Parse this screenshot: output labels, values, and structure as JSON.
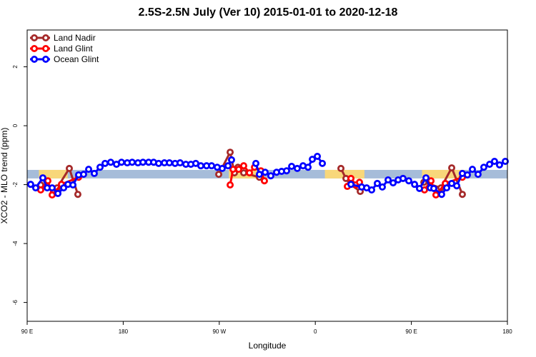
{
  "chart_data": {
    "type": "line",
    "title": "2.5S-2.5N July (Ver 10)   2015-01-01 to 2020-12-18",
    "xlabel": "Longitude",
    "ylabel": "XCO2 - MLO trend (ppm)",
    "xlim": [
      90,
      540
    ],
    "ylim": [
      -6.64,
      3.25
    ],
    "xticks": [
      {
        "v": 90,
        "label": "90 E"
      },
      {
        "v": 180,
        "label": "180"
      },
      {
        "v": 270,
        "label": "90 W"
      },
      {
        "v": 360,
        "label": "0"
      },
      {
        "v": 450,
        "label": "90 E"
      },
      {
        "v": 540,
        "label": "180"
      }
    ],
    "yticks": [
      {
        "v": 2,
        "label": "2"
      },
      {
        "v": 0,
        "label": "0"
      },
      {
        "v": -2,
        "label": "-2"
      },
      {
        "v": -4,
        "label": "-4"
      },
      {
        "v": -6,
        "label": "-6"
      }
    ],
    "legend_position": "top-left",
    "band": {
      "range": [
        -1.79,
        -1.5
      ],
      "color": "#a6bcd9"
    },
    "land_spans": {
      "color": "#f8d77a",
      "ranges": [
        [
          101,
          128
        ],
        [
          279,
          312
        ],
        [
          369,
          406
        ],
        [
          460,
          500
        ]
      ]
    },
    "series": [
      {
        "name": "Land Nadir",
        "color": "#a52a2a",
        "points": [
          [
            102.7,
            -2.01
          ],
          [
            118.1,
            -2.11
          ],
          [
            129.5,
            -1.45
          ],
          [
            137.5,
            -2.33
          ],
          [
            269.5,
            -1.65
          ],
          [
            280.2,
            -0.9
          ],
          [
            284.2,
            -1.6
          ],
          [
            287.5,
            -1.41
          ],
          [
            292.9,
            -1.6
          ],
          [
            307.6,
            -1.75
          ],
          [
            384,
            -1.45
          ],
          [
            388.7,
            -1.79
          ],
          [
            392.7,
            -1.99
          ],
          [
            402.1,
            -2.23
          ],
          [
            461.7,
            -1.92
          ],
          [
            477.7,
            -2.11
          ],
          [
            487.8,
            -1.43
          ],
          [
            497.8,
            -2.33
          ]
        ]
      },
      {
        "name": "Land Glint",
        "color": "#ff0000",
        "points": [
          [
            102.7,
            -2.18
          ],
          [
            109.4,
            -1.87
          ],
          [
            113.4,
            -2.35
          ],
          [
            122.1,
            -1.99
          ],
          [
            138.2,
            -1.75
          ],
          [
            280.2,
            -2.01
          ],
          [
            282.9,
            -1.48
          ],
          [
            288.2,
            -1.48
          ],
          [
            292.9,
            -1.36
          ],
          [
            298.3,
            -1.6
          ],
          [
            303,
            -1.41
          ],
          [
            309,
            -1.53
          ],
          [
            312.3,
            -1.87
          ],
          [
            390,
            -2.06
          ],
          [
            393.4,
            -1.79
          ],
          [
            398,
            -2.01
          ],
          [
            401.4,
            -1.92
          ],
          [
            462.3,
            -2.18
          ],
          [
            468.4,
            -1.87
          ],
          [
            473,
            -2.35
          ],
          [
            481.8,
            -1.96
          ],
          [
            497.8,
            -1.75
          ]
        ]
      },
      {
        "name": "Ocean Glint",
        "color": "#0000ff",
        "points": [
          [
            93.3,
            -1.99
          ],
          [
            98,
            -2.11
          ],
          [
            104.7,
            -1.77
          ],
          [
            108.8,
            -2.11
          ],
          [
            113.4,
            -2.11
          ],
          [
            118.8,
            -2.3
          ],
          [
            124.2,
            -2.11
          ],
          [
            128.2,
            -1.99
          ],
          [
            132.9,
            -2.01
          ],
          [
            138.2,
            -1.67
          ],
          [
            142.9,
            -1.65
          ],
          [
            147.6,
            -1.48
          ],
          [
            152.9,
            -1.62
          ],
          [
            158.3,
            -1.41
          ],
          [
            163,
            -1.28
          ],
          [
            168.3,
            -1.24
          ],
          [
            173.7,
            -1.31
          ],
          [
            178.4,
            -1.24
          ],
          [
            183.8,
            -1.26
          ],
          [
            188.4,
            -1.24
          ],
          [
            193.8,
            -1.26
          ],
          [
            198.5,
            -1.24
          ],
          [
            203.8,
            -1.24
          ],
          [
            208.5,
            -1.24
          ],
          [
            213.2,
            -1.28
          ],
          [
            218.6,
            -1.26
          ],
          [
            223.3,
            -1.26
          ],
          [
            228.6,
            -1.28
          ],
          [
            233.3,
            -1.26
          ],
          [
            238.7,
            -1.31
          ],
          [
            243.4,
            -1.31
          ],
          [
            248,
            -1.28
          ],
          [
            252.7,
            -1.36
          ],
          [
            258.1,
            -1.36
          ],
          [
            262.8,
            -1.36
          ],
          [
            268.1,
            -1.41
          ],
          [
            272.8,
            -1.45
          ],
          [
            278.2,
            -1.36
          ],
          [
            281.5,
            -1.16
          ],
          [
            304.3,
            -1.28
          ],
          [
            307.6,
            -1.65
          ],
          [
            313,
            -1.58
          ],
          [
            318.3,
            -1.7
          ],
          [
            323.7,
            -1.58
          ],
          [
            328.4,
            -1.55
          ],
          [
            333.1,
            -1.53
          ],
          [
            337.8,
            -1.38
          ],
          [
            343.1,
            -1.45
          ],
          [
            348.5,
            -1.36
          ],
          [
            353.2,
            -1.41
          ],
          [
            357.2,
            -1.14
          ],
          [
            361.9,
            -1.04
          ],
          [
            366.6,
            -1.28
          ],
          [
            393.4,
            -1.99
          ],
          [
            403.4,
            -2.08
          ],
          [
            408.1,
            -2.11
          ],
          [
            412.8,
            -2.18
          ],
          [
            418.1,
            -1.96
          ],
          [
            422.8,
            -2.08
          ],
          [
            428.2,
            -1.84
          ],
          [
            432.9,
            -1.94
          ],
          [
            437.6,
            -1.84
          ],
          [
            442.2,
            -1.79
          ],
          [
            447.6,
            -1.87
          ],
          [
            453,
            -1.99
          ],
          [
            457.6,
            -2.13
          ],
          [
            463.7,
            -1.77
          ],
          [
            467.7,
            -2.11
          ],
          [
            471,
            -2.13
          ],
          [
            478.4,
            -2.33
          ],
          [
            483.1,
            -2.11
          ],
          [
            487.8,
            -1.96
          ],
          [
            492.5,
            -2.04
          ],
          [
            497.8,
            -1.62
          ],
          [
            502.5,
            -1.67
          ],
          [
            507.2,
            -1.48
          ],
          [
            512.5,
            -1.65
          ],
          [
            517.9,
            -1.41
          ],
          [
            523.3,
            -1.31
          ],
          [
            527.9,
            -1.21
          ],
          [
            532.6,
            -1.33
          ],
          [
            538,
            -1.21
          ]
        ]
      }
    ]
  }
}
